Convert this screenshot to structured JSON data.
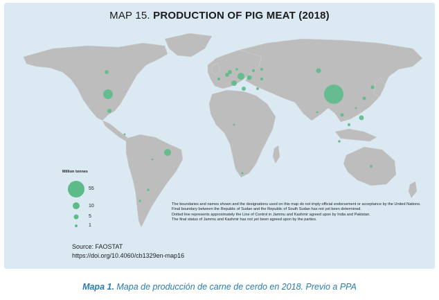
{
  "map": {
    "title_prefix": "MAP 15.",
    "title_main": "PRODUCTION OF PIG MEAT (2018)",
    "colors": {
      "land": "#bdbdbd",
      "ocean_frame": "#dbe9f3",
      "bubble": "#5dbb8a",
      "caption": "#2a7bb0"
    }
  },
  "legend": {
    "title": "Million tonnes",
    "values": [
      "55",
      "10",
      "5",
      "1"
    ]
  },
  "notes": [
    "The boundaries and names shown and the designations used on this map do not imply official endorsement or acceptance by the United Nations.",
    "Final boundary between the Republic of Sudan and the Republic of South Sudan has not yet been determined.",
    "Dotted line represents approximately the Line of Control in Jammu and Kashmir agreed upon by India and Pakistan.",
    "The final status of Jammu and Kashmir has not yet been agreed upon by the parties."
  ],
  "source": {
    "line1": "Source: FAOSTAT",
    "line2": "https://doi.org/10.4060/cb1329en-map16"
  },
  "caption": {
    "label": "Mapa 1.",
    "text": " Mapa de producción de carne de cerdo en 2018. Previo a PPA"
  }
}
